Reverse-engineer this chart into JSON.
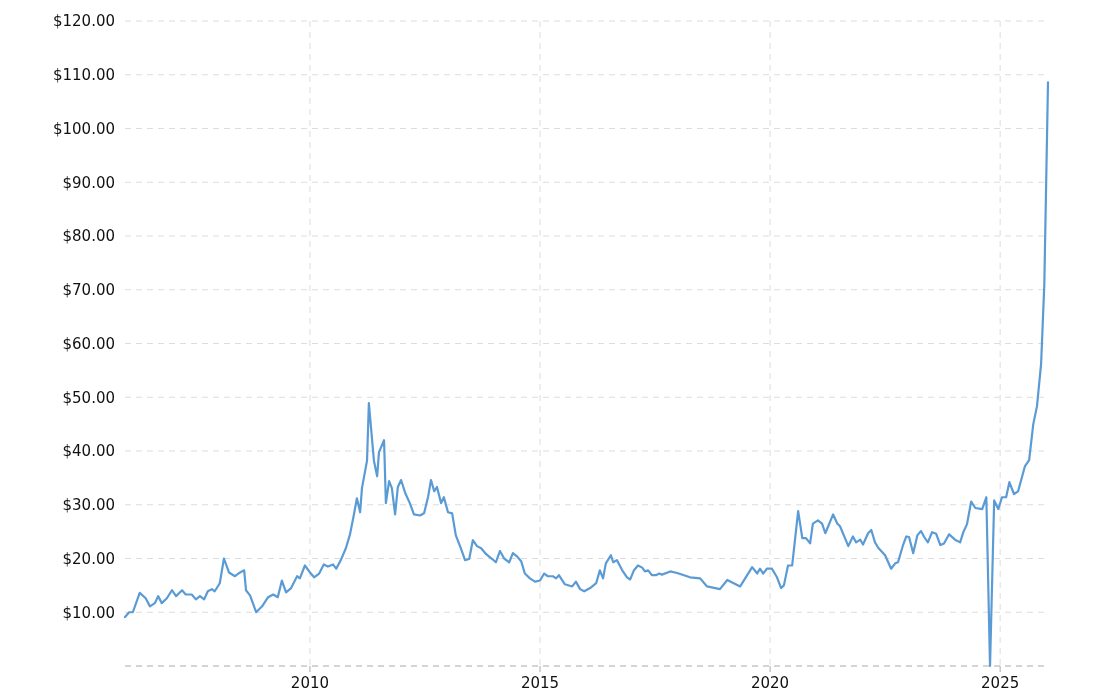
{
  "chart_data": {
    "type": "line",
    "x": [
      2005.98,
      2006.07,
      2006.15,
      2006.3,
      2006.43,
      2006.52,
      2006.63,
      2006.7,
      2006.78,
      2006.89,
      2007.0,
      2007.09,
      2007.22,
      2007.3,
      2007.43,
      2007.52,
      2007.61,
      2007.7,
      2007.78,
      2007.87,
      2007.93,
      2008.04,
      2008.13,
      2008.24,
      2008.37,
      2008.48,
      2008.57,
      2008.61,
      2008.7,
      2008.83,
      2008.96,
      2009.09,
      2009.2,
      2009.3,
      2009.39,
      2009.48,
      2009.59,
      2009.72,
      2009.78,
      2009.89,
      2010.0,
      2010.09,
      2010.2,
      2010.3,
      2010.39,
      2010.5,
      2010.57,
      2010.67,
      2010.78,
      2010.87,
      2010.96,
      2011.02,
      2011.09,
      2011.13,
      2011.24,
      2011.28,
      2011.39,
      2011.46,
      2011.5,
      2011.61,
      2011.65,
      2011.72,
      2011.78,
      2011.85,
      2011.91,
      2011.98,
      2012.07,
      2012.17,
      2012.26,
      2012.39,
      2012.48,
      2012.57,
      2012.63,
      2012.7,
      2012.76,
      2012.85,
      2012.91,
      2013.0,
      2013.09,
      2013.17,
      2013.28,
      2013.37,
      2013.46,
      2013.54,
      2013.63,
      2013.72,
      2013.83,
      2013.96,
      2014.04,
      2014.13,
      2014.22,
      2014.33,
      2014.41,
      2014.5,
      2014.59,
      2014.67,
      2014.78,
      2014.89,
      2015.0,
      2015.09,
      2015.17,
      2015.28,
      2015.35,
      2015.41,
      2015.54,
      2015.7,
      2015.78,
      2015.87,
      2015.96,
      2016.09,
      2016.22,
      2016.3,
      2016.37,
      2016.43,
      2016.54,
      2016.59,
      2016.67,
      2016.78,
      2016.89,
      2016.96,
      2017.04,
      2017.13,
      2017.22,
      2017.28,
      2017.35,
      2017.43,
      2017.52,
      2017.59,
      2017.65,
      2017.83,
      2017.98,
      2018.26,
      2018.48,
      2018.63,
      2018.91,
      2019.07,
      2019.35,
      2019.61,
      2019.72,
      2019.78,
      2019.85,
      2019.93,
      2020.04,
      2020.15,
      2020.24,
      2020.3,
      2020.39,
      2020.48,
      2020.61,
      2020.7,
      2020.78,
      2020.87,
      2020.93,
      2021.04,
      2021.13,
      2021.2,
      2021.37,
      2021.46,
      2021.52,
      2021.7,
      2021.8,
      2021.87,
      2021.96,
      2022.02,
      2022.13,
      2022.2,
      2022.28,
      2022.35,
      2022.5,
      2022.63,
      2022.72,
      2022.78,
      2022.89,
      2022.96,
      2023.02,
      2023.11,
      2023.2,
      2023.28,
      2023.35,
      2023.43,
      2023.52,
      2023.61,
      2023.7,
      2023.78,
      2023.89,
      2024.02,
      2024.13,
      2024.2,
      2024.28,
      2024.37,
      2024.46,
      2024.61,
      2024.7,
      2024.78,
      2024.87,
      2024.96,
      2025.04,
      2025.13,
      2025.2,
      2025.3,
      2025.39,
      2025.54,
      2025.63,
      2025.72,
      2025.8,
      2025.89,
      2025.96,
      2026.04
    ],
    "series": [
      {
        "color": "#5b9bd5",
        "values": [
          9.1,
          10,
          10,
          13.6,
          12.6,
          11.1,
          11.7,
          13,
          11.7,
          12.6,
          14.1,
          13,
          14.1,
          13.3,
          13.3,
          12.4,
          13,
          12.4,
          13.9,
          14.3,
          13.9,
          15.4,
          20,
          17.4,
          16.7,
          17.4,
          17.8,
          14.1,
          13.1,
          10,
          11.1,
          12.8,
          13.3,
          12.8,
          15.9,
          13.7,
          14.5,
          16.7,
          16.3,
          18.7,
          17.4,
          16.5,
          17.2,
          18.9,
          18.5,
          18.9,
          18.1,
          19.7,
          21.9,
          24.5,
          28.4,
          31.2,
          28.6,
          33.1,
          38.2,
          48.9,
          38.2,
          35.3,
          39.8,
          42,
          30.3,
          34.4,
          33.1,
          28.2,
          33.3,
          34.6,
          32.2,
          30.3,
          28.2,
          28,
          28.4,
          31.6,
          34.6,
          32.5,
          33.3,
          30.3,
          31.4,
          28.6,
          28.4,
          24.3,
          21.9,
          19.7,
          19.9,
          23.4,
          22.3,
          21.9,
          20.8,
          19.9,
          19.3,
          21.4,
          20,
          19.3,
          21,
          20.4,
          19.5,
          17.2,
          16.3,
          15.7,
          15.9,
          17.2,
          16.7,
          16.7,
          16.3,
          16.9,
          15.2,
          14.8,
          15.7,
          14.3,
          13.9,
          14.5,
          15.4,
          17.8,
          16.3,
          19.1,
          20.6,
          19.3,
          19.7,
          17.9,
          16.5,
          16.1,
          17.8,
          18.7,
          18.3,
          17.6,
          17.8,
          16.9,
          16.9,
          17.2,
          17,
          17.6,
          17.3,
          16.5,
          16.3,
          14.8,
          14.3,
          16,
          14.8,
          18.4,
          17.2,
          18.1,
          17.2,
          18.1,
          18.1,
          16.5,
          14.5,
          15,
          18.7,
          18.7,
          28.8,
          23.8,
          23.8,
          22.8,
          26.5,
          27.1,
          26.5,
          24.7,
          28.2,
          26.5,
          26,
          22.3,
          24.1,
          23,
          23.5,
          22.6,
          24.7,
          25.3,
          23,
          22,
          20.6,
          18.1,
          19.1,
          19.3,
          22.5,
          24.1,
          24,
          21,
          24.3,
          25.1,
          24,
          23,
          24.9,
          24.6,
          22.5,
          22.8,
          24.5,
          23.5,
          23,
          24.9,
          26.4,
          30.6,
          29.4,
          29.2,
          31.4,
          0,
          30.8,
          29.2,
          31.4,
          31.4,
          34.2,
          32,
          32.5,
          37.2,
          38.3,
          45,
          48.3,
          56.2,
          71,
          108.6
        ]
      }
    ],
    "xlim": [
      2005.98,
      2026.04
    ],
    "xticks": [
      2010,
      2015,
      2020,
      2025
    ],
    "ylim": [
      0,
      120
    ],
    "yticks": [
      {
        "value": 10,
        "label": "$10.00"
      },
      {
        "value": 20,
        "label": "$20.00"
      },
      {
        "value": 30,
        "label": "$30.00"
      },
      {
        "value": 40,
        "label": "$40.00"
      },
      {
        "value": 50,
        "label": "$50.00"
      },
      {
        "value": 60,
        "label": "$60.00"
      },
      {
        "value": 70,
        "label": "$70.00"
      },
      {
        "value": 80,
        "label": "$80.00"
      },
      {
        "value": 90,
        "label": "$90.00"
      },
      {
        "value": 100,
        "label": "$100.00"
      },
      {
        "value": 110,
        "label": "$110.00"
      },
      {
        "value": 120,
        "label": "$120.00"
      }
    ],
    "grid": true,
    "marker": "none",
    "line_style": "solid"
  }
}
